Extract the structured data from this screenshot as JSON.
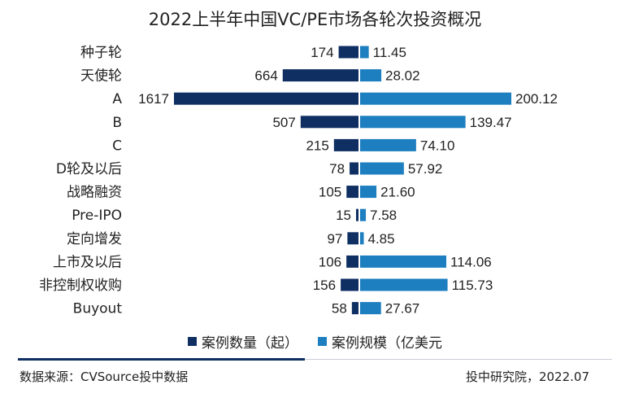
{
  "colors": {
    "count": "#0f2f63",
    "scale": "#1d7fc0"
  },
  "chart_data": {
    "type": "bar",
    "orientation": "horizontal-butterfly",
    "title": "2022上半年中国VC/PE市场各轮次投资概况",
    "categories": [
      "种子轮",
      "天使轮",
      "A",
      "B",
      "C",
      "D轮及以后",
      "战略融资",
      "Pre-IPO",
      "定向增发",
      "上市及以后",
      "非控制权收购",
      "Buyout"
    ],
    "series": [
      {
        "name": "案例数量（起）",
        "values": [
          174,
          664,
          1617,
          507,
          215,
          78,
          105,
          15,
          97,
          106,
          156,
          58
        ],
        "labels": [
          "174",
          "664",
          "1617",
          "507",
          "215",
          "78",
          "105",
          "15",
          "97",
          "106",
          "156",
          "58"
        ]
      },
      {
        "name": "案例规模（亿美元",
        "values": [
          11.45,
          28.02,
          200.12,
          139.47,
          74.1,
          57.92,
          21.6,
          7.58,
          4.85,
          114.06,
          115.73,
          27.67
        ],
        "labels": [
          "11.45",
          "28.02",
          "200.12",
          "139.47",
          "74.10",
          "57.92",
          "21.60",
          "7.58",
          "4.85",
          "114.06",
          "115.73",
          "27.67"
        ]
      }
    ],
    "legend_position": "bottom",
    "grid": false
  },
  "footer": {
    "source": "数据来源：CVSource投中数据",
    "credit": "投中研究院，2022.07"
  }
}
